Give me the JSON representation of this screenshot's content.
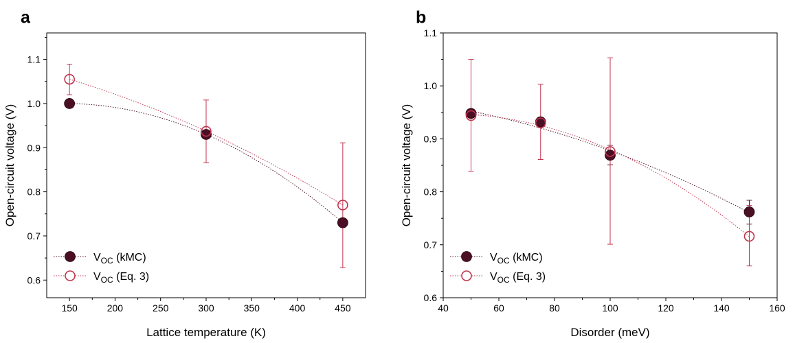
{
  "chart_data": [
    {
      "type": "scatter",
      "panel_label": "a",
      "xlabel": "Lattice temperature (K)",
      "ylabel": "Open-circuit voltage (V)",
      "xlim": [
        125,
        475
      ],
      "ylim": [
        0.56,
        1.16
      ],
      "x_ticks": [
        150,
        200,
        250,
        300,
        350,
        400,
        450
      ],
      "y_ticks": [
        0.6,
        0.7,
        0.8,
        0.9,
        1.0,
        1.1
      ],
      "y_tick_labels": [
        "0.6",
        "0.7",
        "0.8",
        "0.9",
        "1.0",
        "1.1"
      ],
      "legend_position": "bottom-left",
      "series": [
        {
          "name_main": "V",
          "name_sub": "OC",
          "name_suffix": " (kMC)",
          "marker": "filled-circle",
          "color": "#4a0f24",
          "x": [
            150,
            300,
            450
          ],
          "y": [
            1.0,
            0.93,
            0.73
          ],
          "fit_curve": true
        },
        {
          "name_main": "V",
          "name_sub": "OC",
          "name_suffix": " (Eq. 3)",
          "marker": "open-circle",
          "color": "#c0334d",
          "x": [
            150,
            300,
            450
          ],
          "y": [
            1.055,
            0.937,
            0.77
          ],
          "error_low": [
            1.02,
            0.866,
            0.628
          ],
          "error_high": [
            1.089,
            1.008,
            0.911
          ],
          "fit_curve": true
        }
      ]
    },
    {
      "type": "scatter",
      "panel_label": "b",
      "xlabel": "Disorder (meV)",
      "ylabel": "Open-circuit voltage (V)",
      "xlim": [
        40,
        160
      ],
      "ylim": [
        0.6,
        1.1
      ],
      "x_ticks": [
        40,
        60,
        80,
        100,
        120,
        140,
        160
      ],
      "y_ticks": [
        0.6,
        0.7,
        0.8,
        0.9,
        1.0,
        1.1
      ],
      "y_tick_labels": [
        "0.6",
        "0.7",
        "0.8",
        "0.9",
        "1.0",
        "1.1"
      ],
      "legend_position": "bottom-left",
      "series": [
        {
          "name_main": "V",
          "name_sub": "OC",
          "name_suffix": " (kMC)",
          "marker": "filled-circle",
          "color": "#4a0f24",
          "x": [
            50,
            75,
            100,
            150
          ],
          "y": [
            0.948,
            0.932,
            0.869,
            0.762
          ],
          "error_low": [
            null,
            null,
            0.851,
            0.739
          ],
          "error_high": [
            null,
            null,
            0.888,
            0.784
          ],
          "fit_curve": true
        },
        {
          "name_main": "V",
          "name_sub": "OC",
          "name_suffix": " (Eq. 3)",
          "marker": "open-circle",
          "color": "#c0334d",
          "x": [
            50,
            75,
            100,
            150
          ],
          "y": [
            0.944,
            0.93,
            0.876,
            0.716
          ],
          "error_low": [
            0.839,
            0.861,
            0.701,
            0.66
          ],
          "error_high": [
            1.05,
            1.003,
            1.053,
            0.774
          ],
          "fit_curve": true
        }
      ]
    }
  ]
}
